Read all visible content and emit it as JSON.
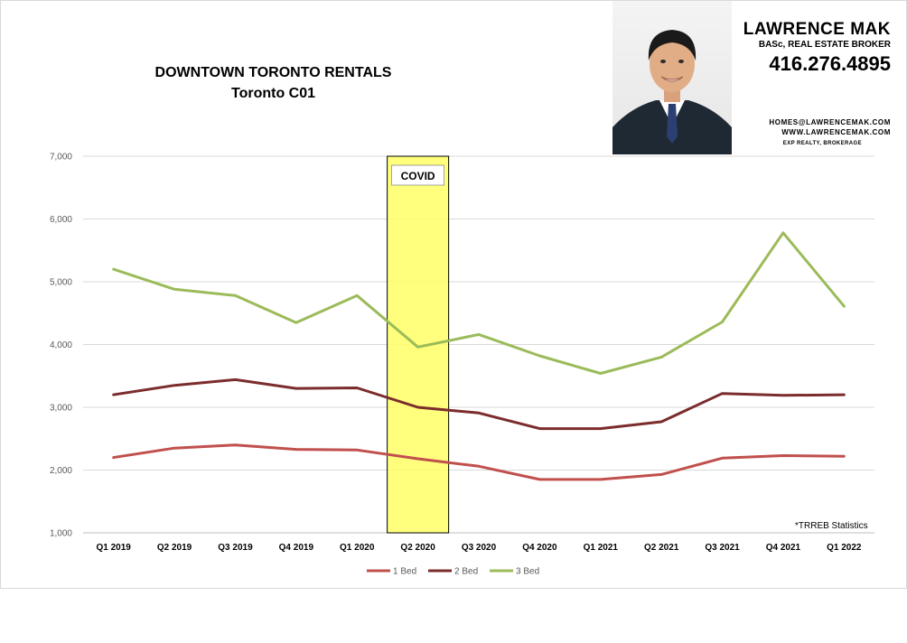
{
  "header": {
    "title_line1": "DOWNTOWN TORONTO RENTALS",
    "title_line2": "Toronto C01"
  },
  "agent": {
    "name": "LAWRENCE MAK",
    "role": "BASc, REAL ESTATE BROKER",
    "phone": "416.276.4895",
    "email": "HOMES@LAWRENCEMAK.COM",
    "website": "WWW.LAWRENCEMAK.COM",
    "brokerage": "EXP REALTY, BROKERAGE"
  },
  "source_note": "*TRREB Statistics",
  "colors": {
    "bed1": "#c0504d",
    "bed2": "#7b2c2c",
    "bed3": "#9bbb59",
    "covid_fill": "#ffff66",
    "grid": "#d9d9d9"
  },
  "chart_data": {
    "type": "line",
    "categories": [
      "Q1 2019",
      "Q2 2019",
      "Q3 2019",
      "Q4 2019",
      "Q1 2020",
      "Q2 2020",
      "Q3 2020",
      "Q4 2020",
      "Q1 2021",
      "Q2 2021",
      "Q3 2021",
      "Q4 2021",
      "Q1 2022"
    ],
    "ylim": [
      1000,
      7000
    ],
    "yticks": [
      1000,
      2000,
      3000,
      4000,
      5000,
      6000,
      7000
    ],
    "ytick_labels": [
      "1,000",
      "2,000",
      "3,000",
      "4,000",
      "5,000",
      "6,000",
      "7,000"
    ],
    "grid": true,
    "legend": "bottom",
    "series": [
      {
        "name": "1 Bed",
        "color_key": "bed1",
        "values": [
          2200,
          2350,
          2400,
          2330,
          2320,
          2180,
          2060,
          1850,
          1850,
          1930,
          2190,
          2230,
          2220
        ]
      },
      {
        "name": "2 Bed",
        "color_key": "bed2",
        "values": [
          3200,
          3350,
          3440,
          3300,
          3310,
          3000,
          2910,
          2660,
          2660,
          2770,
          3220,
          3190,
          3200
        ]
      },
      {
        "name": "3 Bed",
        "color_key": "bed3",
        "values": [
          5200,
          4880,
          4780,
          4350,
          4780,
          3960,
          4160,
          3820,
          3540,
          3800,
          4360,
          5780,
          4610
        ]
      }
    ],
    "annotation": {
      "label": "COVID",
      "category": "Q2 2020"
    }
  }
}
